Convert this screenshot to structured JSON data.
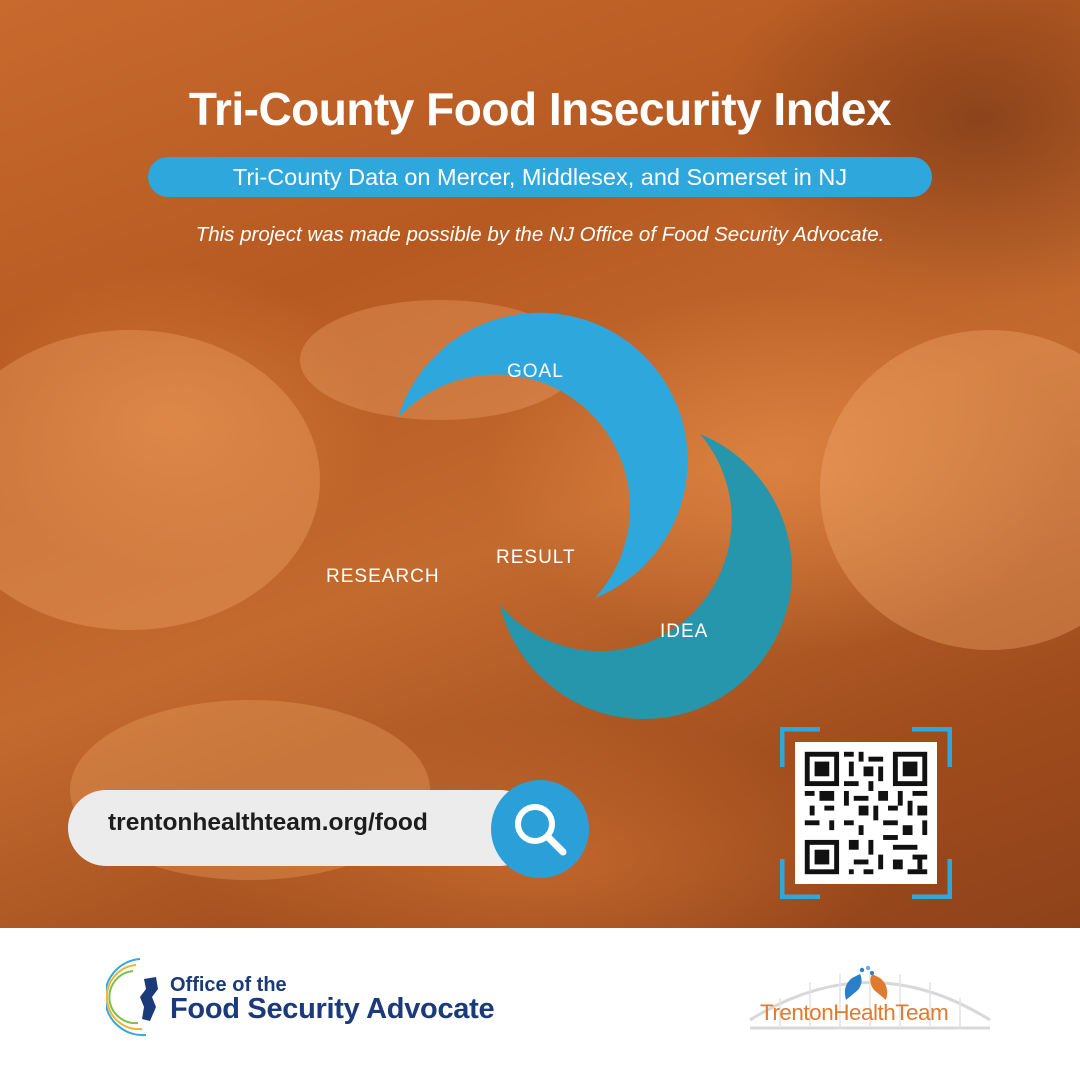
{
  "header": {
    "title": "Tri-County Food Insecurity Index",
    "subtitle": "Tri-County Data on Mercer, Middlesex, and Somerset in NJ",
    "credit": "This project was made possible by the NJ Office of Food Security Advocate."
  },
  "diagram": {
    "goal": "GOAL",
    "research": "RESEARCH",
    "result": "RESULT",
    "idea": "IDEA"
  },
  "search": {
    "url": "trentonhealthteam.org/food"
  },
  "footer": {
    "ofsa_line1": "Office of the",
    "ofsa_line2": "Food Security Advocate",
    "tht_name": "TrentonHealthTeam"
  },
  "colors": {
    "orange": "#f28b2f",
    "blue": "#2ea7dd",
    "teal": "#2596ac",
    "navy": "#1b3a7a"
  }
}
